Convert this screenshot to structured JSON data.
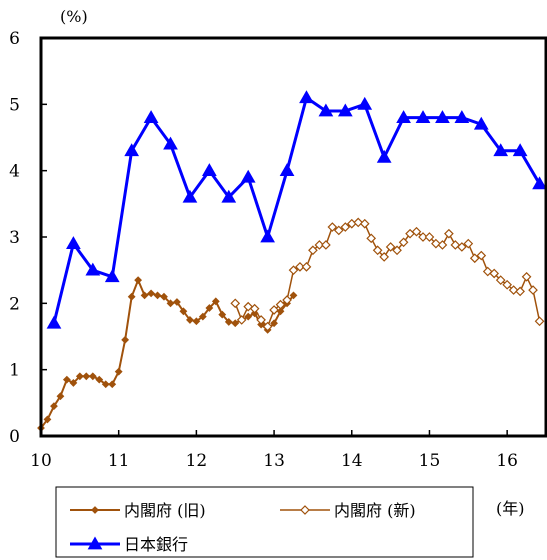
{
  "chart_data": {
    "type": "line",
    "y_unit_label": "(%)",
    "x_unit_label": "(年)",
    "xlim": [
      10,
      16.5
    ],
    "ylim": [
      0,
      6
    ],
    "x_ticks": [
      "10",
      "11",
      "12",
      "13",
      "14",
      "15",
      "16"
    ],
    "y_ticks": [
      "0",
      "1",
      "2",
      "3",
      "4",
      "5",
      "6"
    ],
    "grid": false,
    "legend_position": "bottom",
    "series": [
      {
        "name": "内閣府(旧)",
        "color": "#a0520c",
        "marker": "filled-diamond",
        "x": [
          10.0,
          10.083,
          10.167,
          10.25,
          10.333,
          10.417,
          10.5,
          10.583,
          10.667,
          10.75,
          10.833,
          10.917,
          11.0,
          11.083,
          11.167,
          11.25,
          11.333,
          11.417,
          11.5,
          11.583,
          11.667,
          11.75,
          11.833,
          11.917,
          12.0,
          12.083,
          12.167,
          12.25,
          12.333,
          12.417,
          12.5,
          12.583,
          12.667,
          12.75,
          12.833,
          12.917,
          13.0,
          13.083,
          13.167,
          13.25
        ],
        "values": [
          0.12,
          0.25,
          0.45,
          0.6,
          0.85,
          0.8,
          0.9,
          0.9,
          0.9,
          0.85,
          0.78,
          0.78,
          0.97,
          1.45,
          2.1,
          2.35,
          2.12,
          2.15,
          2.12,
          2.1,
          2.0,
          2.02,
          1.88,
          1.75,
          1.73,
          1.8,
          1.93,
          2.03,
          1.83,
          1.72,
          1.7,
          1.75,
          1.8,
          1.85,
          1.68,
          1.6,
          1.7,
          1.88,
          2.0,
          2.12
        ]
      },
      {
        "name": "内閣府(新)",
        "color": "#a0520c",
        "marker": "open-diamond",
        "x": [
          12.5,
          12.583,
          12.667,
          12.75,
          12.833,
          12.917,
          13.0,
          13.083,
          13.167,
          13.25,
          13.333,
          13.417,
          13.5,
          13.583,
          13.667,
          13.75,
          13.833,
          13.917,
          14.0,
          14.083,
          14.167,
          14.25,
          14.333,
          14.417,
          14.5,
          14.583,
          14.667,
          14.75,
          14.833,
          14.917,
          15.0,
          15.083,
          15.167,
          15.25,
          15.333,
          15.417,
          15.5,
          15.583,
          15.667,
          15.75,
          15.833,
          15.917,
          16.0,
          16.083,
          16.167,
          16.25,
          16.333,
          16.417
        ],
        "values": [
          2.0,
          1.75,
          1.95,
          1.92,
          1.75,
          1.65,
          1.9,
          1.98,
          2.05,
          2.5,
          2.55,
          2.55,
          2.8,
          2.88,
          2.88,
          3.15,
          3.1,
          3.15,
          3.2,
          3.22,
          3.2,
          2.98,
          2.8,
          2.7,
          2.85,
          2.8,
          2.92,
          3.05,
          3.08,
          3.0,
          3.0,
          2.9,
          2.88,
          3.05,
          2.88,
          2.85,
          2.9,
          2.68,
          2.72,
          2.48,
          2.45,
          2.35,
          2.28,
          2.2,
          2.18,
          2.4,
          2.2,
          1.73
        ]
      },
      {
        "name": "日本銀行",
        "color": "#0000ff",
        "marker": "filled-triangle",
        "x": [
          10.167,
          10.417,
          10.667,
          10.917,
          11.167,
          11.417,
          11.667,
          11.917,
          12.167,
          12.417,
          12.667,
          12.917,
          13.167,
          13.417,
          13.667,
          13.917,
          14.167,
          14.417,
          14.667,
          14.917,
          15.167,
          15.417,
          15.667,
          15.917,
          16.167,
          16.417
        ],
        "values": [
          1.7,
          2.9,
          2.5,
          2.4,
          4.3,
          4.8,
          4.4,
          3.6,
          4.0,
          3.6,
          3.9,
          3.0,
          4.0,
          5.1,
          4.9,
          4.9,
          5.0,
          4.2,
          4.8,
          4.8,
          4.8,
          4.8,
          4.7,
          4.3,
          4.3,
          3.8
        ]
      }
    ],
    "legend": [
      {
        "label": "内閣府 (旧)",
        "series_index": 0
      },
      {
        "label": "内閣府 (新)",
        "series_index": 1
      },
      {
        "label": "日本銀行",
        "series_index": 2
      }
    ]
  }
}
